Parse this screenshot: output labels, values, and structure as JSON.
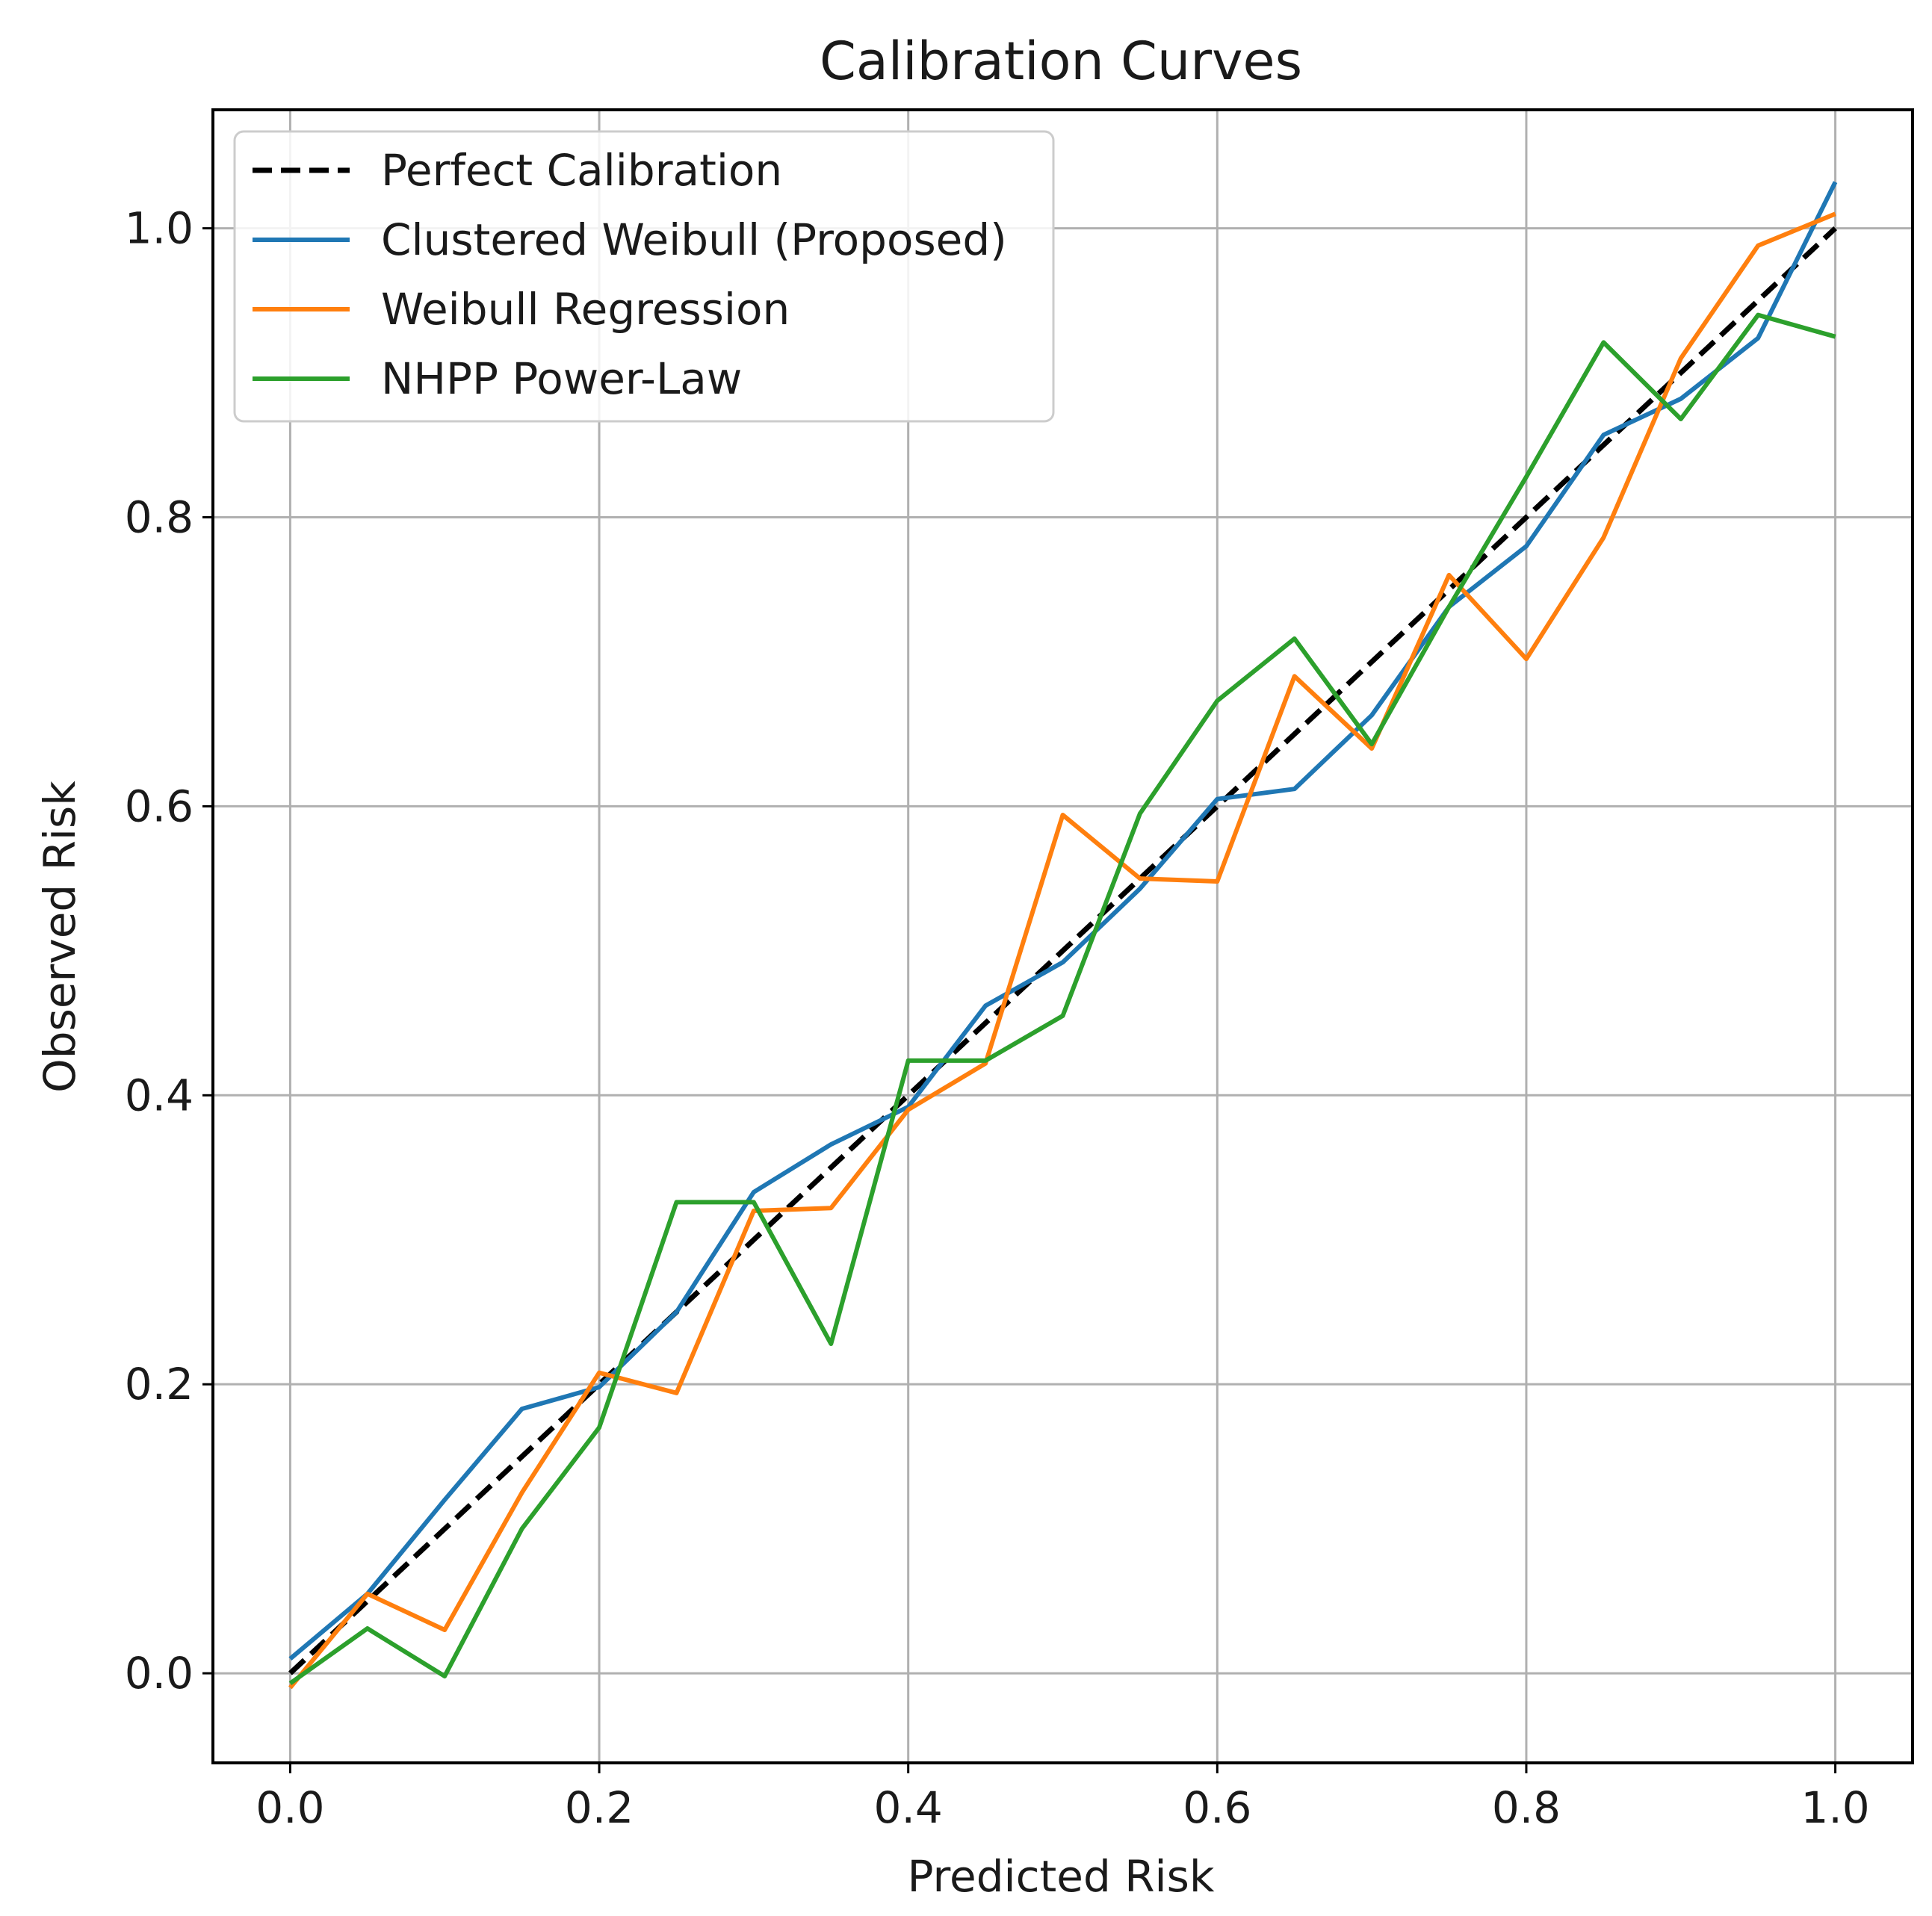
{
  "chart_data": {
    "type": "line",
    "title": "Calibration Curves",
    "xlabel": "Predicted Risk",
    "ylabel": "Observed Risk",
    "xlim": [
      -0.05,
      1.05
    ],
    "ylim": [
      -0.062,
      1.082
    ],
    "grid": true,
    "legend_position": "upper-left",
    "x_ticks": [
      {
        "value": 0.0,
        "label": "0.0"
      },
      {
        "value": 0.2,
        "label": "0.2"
      },
      {
        "value": 0.4,
        "label": "0.4"
      },
      {
        "value": 0.6,
        "label": "0.6"
      },
      {
        "value": 0.8,
        "label": "0.8"
      },
      {
        "value": 1.0,
        "label": "1.0"
      }
    ],
    "y_ticks": [
      {
        "value": 0.0,
        "label": "0.0"
      },
      {
        "value": 0.2,
        "label": "0.2"
      },
      {
        "value": 0.4,
        "label": "0.4"
      },
      {
        "value": 0.6,
        "label": "0.6"
      },
      {
        "value": 0.8,
        "label": "0.8"
      },
      {
        "value": 1.0,
        "label": "1.0"
      }
    ],
    "x": [
      0.0,
      0.05,
      0.1,
      0.15,
      0.2,
      0.25,
      0.3,
      0.35,
      0.4,
      0.45,
      0.5,
      0.55,
      0.6,
      0.65,
      0.7,
      0.75,
      0.8,
      0.85,
      0.9,
      0.95,
      1.0
    ],
    "series": [
      {
        "name": "Perfect Calibration",
        "color": "#000000",
        "dashed": true,
        "x": [
          0.0,
          1.0
        ],
        "values": [
          0.0,
          1.0
        ]
      },
      {
        "name": "Clustered Weibull (Proposed)",
        "color": "#1f77b4",
        "dashed": false,
        "values": [
          0.01,
          0.055,
          0.12,
          0.183,
          0.198,
          0.25,
          0.333,
          0.366,
          0.392,
          0.462,
          0.492,
          0.543,
          0.605,
          0.612,
          0.663,
          0.738,
          0.78,
          0.857,
          0.882,
          0.924,
          1.032
        ]
      },
      {
        "name": "Weibull Regression",
        "color": "#ff7f0e",
        "dashed": false,
        "values": [
          -0.01,
          0.055,
          0.03,
          0.125,
          0.208,
          0.194,
          0.32,
          0.322,
          0.39,
          0.422,
          0.594,
          0.55,
          0.548,
          0.69,
          0.64,
          0.76,
          0.702,
          0.786,
          0.91,
          0.988,
          1.01
        ]
      },
      {
        "name": "NHPP Power-Law",
        "color": "#2ca02c",
        "dashed": false,
        "values": [
          -0.007,
          0.031,
          -0.002,
          0.1,
          0.17,
          0.326,
          0.326,
          0.228,
          0.424,
          0.424,
          0.455,
          0.595,
          0.673,
          0.716,
          0.643,
          0.738,
          0.828,
          0.921,
          0.868,
          0.94,
          0.925
        ]
      }
    ]
  }
}
